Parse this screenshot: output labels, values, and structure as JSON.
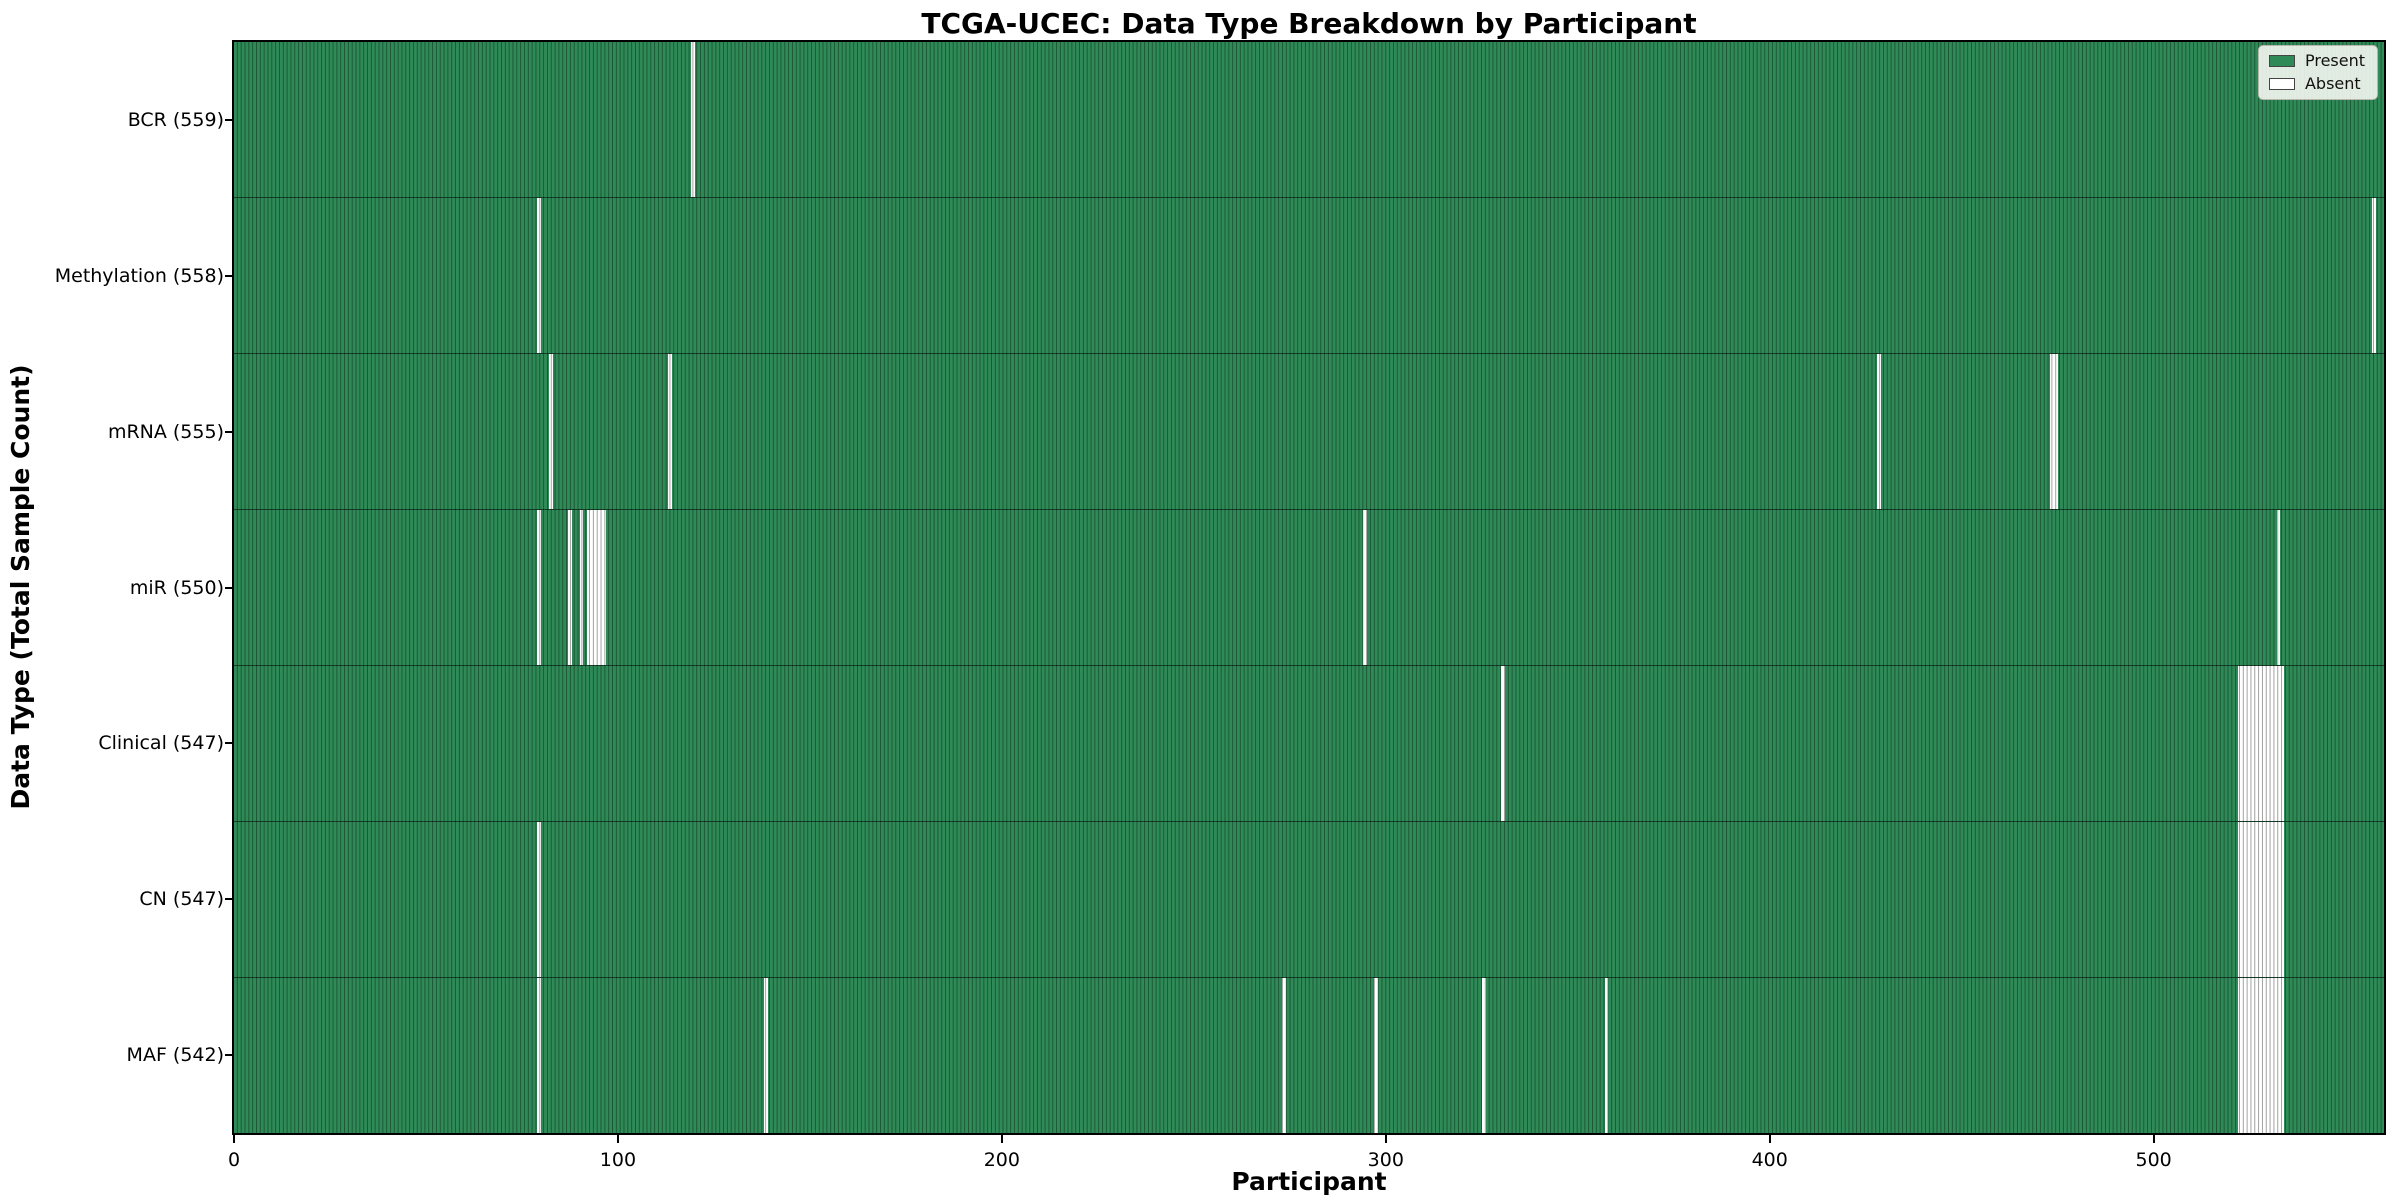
{
  "figure": {
    "background_color": "#ffffff"
  },
  "chart_data": {
    "type": "heatmap",
    "title": "TCGA-UCEC: Data Type Breakdown by Participant",
    "xlabel": "Participant",
    "ylabel": "Data Type (Total Sample Count)",
    "x_ticks": [
      0,
      100,
      200,
      300,
      400,
      500
    ],
    "x_range": [
      0,
      560
    ],
    "total_participants": 560,
    "present_color": "#2e8b57",
    "absent_color": "#ffffff",
    "bar_edge_color": "rgba(0,0,0,0.38)",
    "row_separator_color": "rgba(0,0,0,0.55)",
    "grid": false,
    "legend_position": "upper right",
    "legend": [
      {
        "label": "Present",
        "color": "#2e8b57"
      },
      {
        "label": "Absent",
        "color": "#ffffff"
      }
    ],
    "rows": [
      {
        "label": "BCR (559)",
        "data_type": "BCR",
        "count": 559,
        "absent_participants": [
          119
        ]
      },
      {
        "label": "Methylation (558)",
        "data_type": "Methylation",
        "count": 558,
        "absent_participants": [
          79,
          557
        ]
      },
      {
        "label": "mRNA (555)",
        "data_type": "mRNA",
        "count": 555,
        "absent_participants": [
          82,
          113,
          428,
          473,
          474
        ]
      },
      {
        "label": "miR (550)",
        "data_type": "miR",
        "count": 550,
        "absent_participants": [
          79,
          87,
          90,
          92,
          93,
          94,
          95,
          96,
          294,
          532
        ]
      },
      {
        "label": "Clinical (547)",
        "data_type": "Clinical",
        "count": 547,
        "absent_participants": [
          330,
          522,
          523,
          524,
          525,
          526,
          527,
          528,
          529,
          530,
          531,
          532,
          533
        ]
      },
      {
        "label": "CN (547)",
        "data_type": "CN",
        "count": 547,
        "absent_participants": [
          79,
          522,
          523,
          524,
          525,
          526,
          527,
          528,
          529,
          530,
          531,
          532,
          533
        ]
      },
      {
        "label": "MAF (542)",
        "data_type": "MAF",
        "count": 542,
        "absent_participants": [
          79,
          138,
          273,
          297,
          325,
          357,
          522,
          523,
          524,
          525,
          526,
          527,
          528,
          529,
          530,
          531,
          532,
          533
        ]
      }
    ]
  }
}
